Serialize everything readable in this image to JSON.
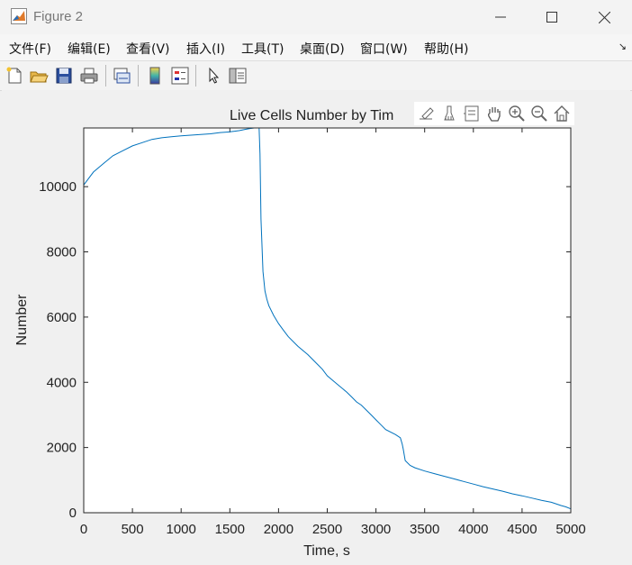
{
  "window": {
    "title": "Figure 2"
  },
  "menu": [
    "文件(F)",
    "编辑(E)",
    "查看(V)",
    "插入(I)",
    "工具(T)",
    "桌面(D)",
    "窗口(W)",
    "帮助(H)"
  ],
  "chart_data": {
    "type": "line",
    "title": "Live Cells Number by Tim",
    "xlabel": "Time, s",
    "ylabel": "Number",
    "xlim": [
      0,
      5000
    ],
    "ylim": [
      0,
      11800
    ],
    "xticks": [
      0,
      500,
      1000,
      1500,
      2000,
      2500,
      3000,
      3500,
      4000,
      4500,
      5000
    ],
    "yticks": [
      0,
      2000,
      4000,
      6000,
      8000,
      10000
    ],
    "grid": false,
    "series": [
      {
        "color": "#0072bd",
        "x": [
          0,
          50,
          100,
          200,
          300,
          400,
          500,
          600,
          700,
          800,
          900,
          1000,
          1100,
          1200,
          1300,
          1400,
          1500,
          1550,
          1600,
          1650,
          1700,
          1750,
          1780,
          1800,
          1810,
          1820,
          1840,
          1860,
          1880,
          1900,
          1950,
          2000,
          2050,
          2100,
          2200,
          2300,
          2400,
          2450,
          2500,
          2600,
          2700,
          2750,
          2800,
          2850,
          2900,
          2950,
          3000,
          3050,
          3100,
          3200,
          3250,
          3270,
          3280,
          3300,
          3350,
          3400,
          3500,
          3600,
          3700,
          3800,
          3900,
          4000,
          4100,
          4200,
          4300,
          4400,
          4500,
          4600,
          4700,
          4800,
          4900,
          4950,
          5000
        ],
        "y": [
          10050,
          10250,
          10450,
          10700,
          10950,
          11100,
          11250,
          11350,
          11450,
          11500,
          11530,
          11560,
          11580,
          11600,
          11620,
          11660,
          11680,
          11700,
          11720,
          11750,
          11780,
          11800,
          11800,
          11800,
          11000,
          9000,
          7400,
          6800,
          6550,
          6350,
          6050,
          5800,
          5600,
          5400,
          5100,
          4850,
          4550,
          4400,
          4200,
          3950,
          3700,
          3550,
          3400,
          3300,
          3150,
          3000,
          2850,
          2700,
          2550,
          2400,
          2300,
          2100,
          1950,
          1600,
          1450,
          1380,
          1280,
          1200,
          1120,
          1040,
          960,
          880,
          800,
          730,
          660,
          580,
          520,
          450,
          380,
          320,
          220,
          180,
          120
        ]
      }
    ]
  }
}
